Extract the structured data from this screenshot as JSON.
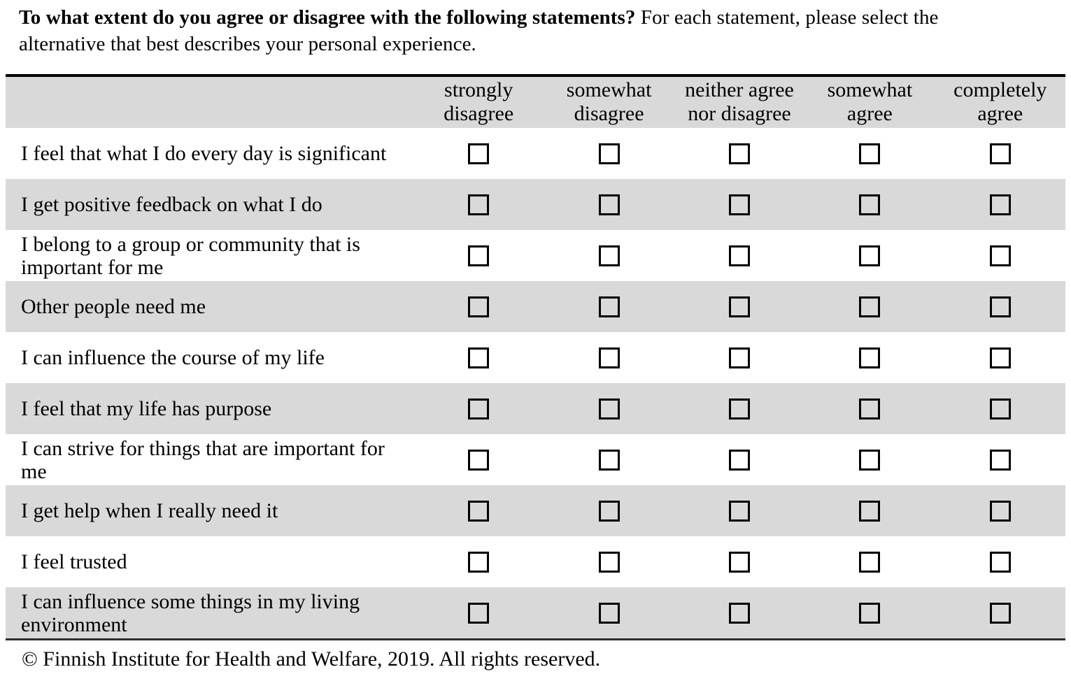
{
  "intro": {
    "line1_bold": "To what extent do you agree or disagree with the following statements?",
    "line1_regular": " For each statement, please select the",
    "line2": "alternative that best describes your personal experience.",
    "full_text": "To what extent do you agree or disagree with the following statements? For each statement, please select the alternative that best describes your personal experience."
  },
  "table": {
    "columns": [
      "strongly\ndisagree",
      "somewhat\ndisagree",
      "neither agree\nnor disagree",
      "somewhat\nagree",
      "completely\nagree"
    ],
    "rows": [
      {
        "statement": "I feel that what I do every day is significant",
        "shaded": false
      },
      {
        "statement": "I get positive feedback on what I do",
        "shaded": true
      },
      {
        "statement": "I belong to a group or community that is important for me",
        "shaded": false
      },
      {
        "statement": "Other people need me",
        "shaded": true
      },
      {
        "statement": "I can influence the course of my life",
        "shaded": false
      },
      {
        "statement": "I feel that my life has purpose",
        "shaded": true
      },
      {
        "statement": "I can strive for things that are important for me",
        "shaded": false
      },
      {
        "statement": "I get help when I really need it",
        "shaded": true
      },
      {
        "statement": "I feel trusted",
        "shaded": false
      },
      {
        "statement": "I can influence some things in my living environment",
        "shaded": true
      }
    ],
    "checkbox_state": "unchecked"
  },
  "footer": {
    "copyright": "© Finnish Institute for Health and Welfare, 2019. All rights reserved."
  },
  "colors": {
    "row_shaded": "#d9d9d9",
    "row_plain": "#ffffff",
    "table_top_border": "#000000",
    "table_bottom_border": "#2e2e2e",
    "checkbox_border": "#000000",
    "text": "#000000"
  }
}
